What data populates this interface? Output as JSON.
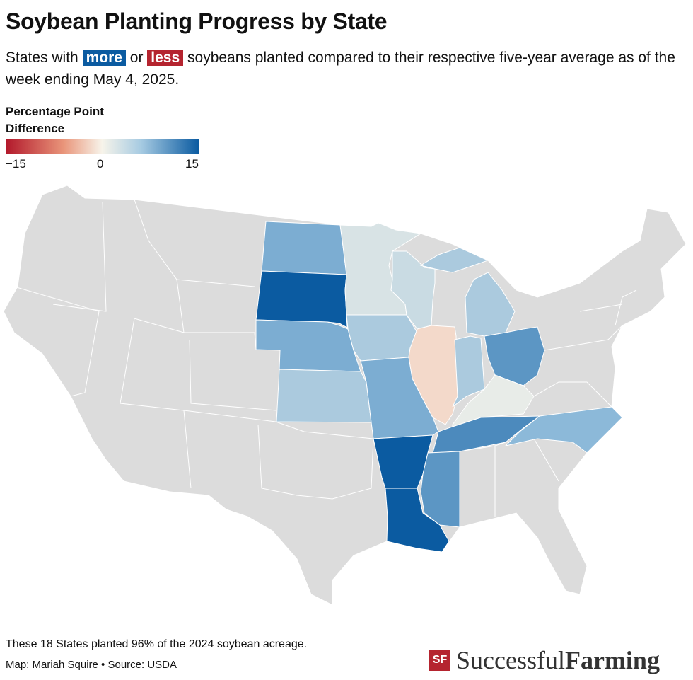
{
  "header": {
    "title": "Soybean Planting Progress by State",
    "subtitle_pre": "States with",
    "more": "more",
    "or": "or",
    "less": "less",
    "subtitle_post": "soybeans planted compared to their respective five-year average as of the week ending May 4, 2025."
  },
  "legend": {
    "title_line1": "Percentage Point",
    "title_line2": "Difference",
    "ticks": [
      "−15",
      "0",
      "15"
    ]
  },
  "colors": {
    "more": "#0b5ba1",
    "less": "#b5242f",
    "no_data": "#dcdcdc"
  },
  "chart_data": {
    "type": "choropleth",
    "metric": "Percentage point difference vs five-year average",
    "range": [
      -15,
      15
    ],
    "states": [
      {
        "name": "North Dakota",
        "value": 8
      },
      {
        "name": "South Dakota",
        "value": 15
      },
      {
        "name": "Nebraska",
        "value": 8
      },
      {
        "name": "Kansas",
        "value": 5
      },
      {
        "name": "Minnesota",
        "value": 2
      },
      {
        "name": "Iowa",
        "value": 5
      },
      {
        "name": "Wisconsin",
        "value": 3
      },
      {
        "name": "Illinois",
        "value": -2
      },
      {
        "name": "Indiana",
        "value": 5
      },
      {
        "name": "Michigan",
        "value": 5
      },
      {
        "name": "Ohio",
        "value": 10
      },
      {
        "name": "Kentucky",
        "value": 1
      },
      {
        "name": "Tennessee",
        "value": 11
      },
      {
        "name": "North Carolina",
        "value": 7
      },
      {
        "name": "Missouri",
        "value": 8
      },
      {
        "name": "Arkansas",
        "value": 15
      },
      {
        "name": "Mississippi",
        "value": 10
      },
      {
        "name": "Louisiana",
        "value": 15
      }
    ]
  },
  "footer": {
    "note": "These 18 States planted 96% of the 2024 soybean acreage.",
    "credit": "Map: Mariah Squire • Source: USDA",
    "logo_mark": "SF",
    "logo_word1": "Successful",
    "logo_word2": "Farming"
  }
}
